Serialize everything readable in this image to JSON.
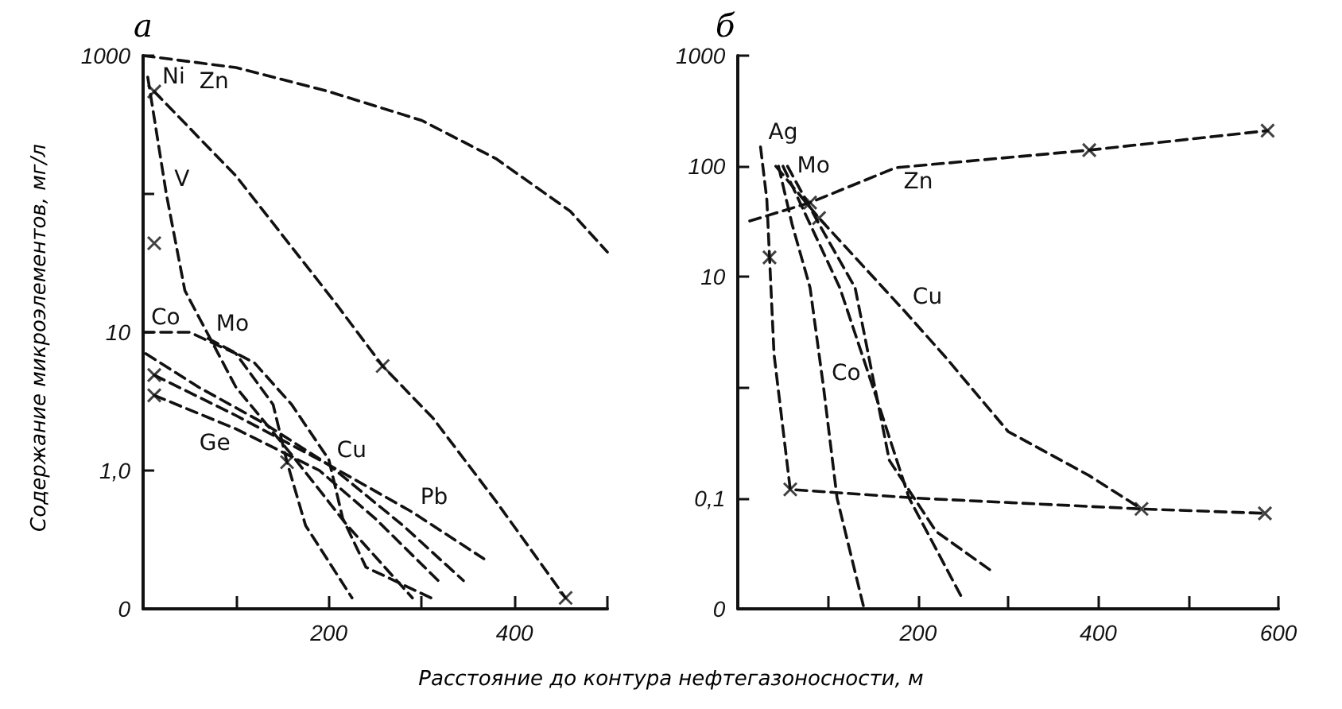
{
  "chart_data": [
    {
      "type": "line",
      "title": "а",
      "ylabel": "Содержание микроэлементов, мг/л",
      "xlabel": "Расстояние до контура нефтегазоносности, м",
      "log": "y",
      "grid": false,
      "legend": false,
      "line_style": "dashed",
      "marker": "none",
      "xlim": [
        0,
        500
      ],
      "xticks": [
        {
          "value": 100,
          "label": null
        },
        200,
        {
          "value": 300,
          "label": null
        },
        400,
        {
          "value": 500,
          "label": null
        }
      ],
      "ylim": [
        0.1,
        1000
      ],
      "yticks": [
        1000,
        {
          "value": 100,
          "label": null
        },
        10,
        {
          "value": 1,
          "label": "1,0"
        },
        {
          "value": 0.1,
          "label": "0"
        }
      ],
      "series": [
        {
          "name": "Zn",
          "color": "#111111",
          "x": [
            0,
            100,
            200,
            300,
            380,
            460,
            500
          ],
          "values": [
            1000,
            820,
            550,
            340,
            180,
            75,
            38
          ]
        },
        {
          "name": "Ni",
          "color": "#111111",
          "x": [
            12,
            100,
            205,
            258,
            312,
            380,
            455
          ],
          "values": [
            550,
            135,
            17,
            5.7,
            2.4,
            0.6,
            0.12
          ]
        },
        {
          "name": "V",
          "color": "#111111",
          "x": [
            5,
            25,
            45,
            100,
            160,
            220,
            290
          ],
          "values": [
            700,
            100,
            20,
            4,
            1.3,
            0.4,
            0.12
          ]
        },
        {
          "name": "Co",
          "color": "#111111",
          "x": [
            0,
            50,
            100,
            140,
            155,
            175,
            225
          ],
          "values": [
            10,
            10,
            7,
            3,
            1.15,
            0.4,
            0.12
          ]
        },
        {
          "name": "Mo",
          "color": "#111111",
          "x": [
            70,
            120,
            160,
            200,
            215,
            240,
            310
          ],
          "values": [
            9,
            6,
            3,
            1.2,
            0.45,
            0.2,
            0.12
          ]
        },
        {
          "name": "Cu",
          "color": "#111111",
          "x": [
            3,
            60,
            130,
            200,
            280,
            345
          ],
          "values": [
            7,
            4,
            2.2,
            1.1,
            0.4,
            0.16
          ]
        },
        {
          "name": "Pb",
          "color": "#111111",
          "x": [
            12,
            100,
            200,
            290,
            367
          ],
          "values": [
            4.9,
            2.5,
            1.1,
            0.5,
            0.23
          ]
        },
        {
          "name": "Ge",
          "color": "#111111",
          "x": [
            12,
            100,
            190,
            250,
            322
          ],
          "values": [
            3.5,
            2,
            1,
            0.45,
            0.15
          ]
        },
        {
          "type": "scatter",
          "marker": "cross",
          "color": "#111111",
          "x": [
            12,
            12,
            12,
            12,
            258,
            155,
            455
          ],
          "values": [
            550,
            44,
            4.9,
            3.5,
            5.7,
            1.15,
            0.12
          ]
        }
      ]
    },
    {
      "type": "line",
      "title": "б",
      "log": "y",
      "grid": false,
      "legend": false,
      "line_style": "dashed",
      "marker": "none",
      "xlim": [
        0,
        600
      ],
      "xticks": [
        {
          "value": 100,
          "label": null
        },
        200,
        {
          "value": 300,
          "label": null
        },
        400,
        {
          "value": 500,
          "label": null
        },
        600
      ],
      "ylim": [
        0.01,
        1000
      ],
      "yticks": [
        1000,
        100,
        10,
        {
          "value": 1,
          "label": null
        },
        {
          "value": 0.1,
          "label": "0,1"
        },
        {
          "value": 0.01,
          "label": "0"
        }
      ],
      "series": [
        {
          "name": "Zn",
          "color": "#111111",
          "x": [
            13,
            80,
            175,
            390,
            588
          ],
          "values": [
            32,
            47,
            97,
            140,
            210
          ]
        },
        {
          "name": "Ag",
          "color": "#111111",
          "x": [
            25,
            32,
            35,
            40,
            58,
            200,
            448,
            585
          ],
          "values": [
            150,
            50,
            15,
            2,
            0.12,
            0.1,
            0.08,
            0.073
          ]
        },
        {
          "name": "Cu",
          "color": "#111111",
          "x": [
            42,
            90,
            185,
            230,
            300,
            390,
            448
          ],
          "values": [
            100,
            34,
            4.9,
            1.9,
            0.4,
            0.16,
            0.08
          ]
        },
        {
          "name": "Co",
          "color": "#111111",
          "x": [
            45,
            60,
            80,
            95,
            110,
            140
          ],
          "values": [
            100,
            30,
            8,
            1,
            0.1,
            0.01
          ]
        },
        {
          "color": "#111111",
          "x": [
            50,
            80,
            113,
            150,
            190,
            250
          ],
          "values": [
            100,
            30,
            8,
            1,
            0.1,
            0.012
          ]
        },
        {
          "name": "Mo",
          "color": "#111111",
          "x": [
            55,
            90,
            130,
            168,
            220,
            285
          ],
          "values": [
            100,
            30,
            8,
            0.22,
            0.05,
            0.021
          ]
        },
        {
          "type": "scatter",
          "marker": "cross",
          "color": "#111111",
          "x": [
            35,
            58,
            80,
            90,
            390,
            448,
            585,
            588
          ],
          "values": [
            15,
            0.12,
            47,
            34,
            140,
            0.08,
            0.073,
            210
          ]
        }
      ]
    }
  ]
}
